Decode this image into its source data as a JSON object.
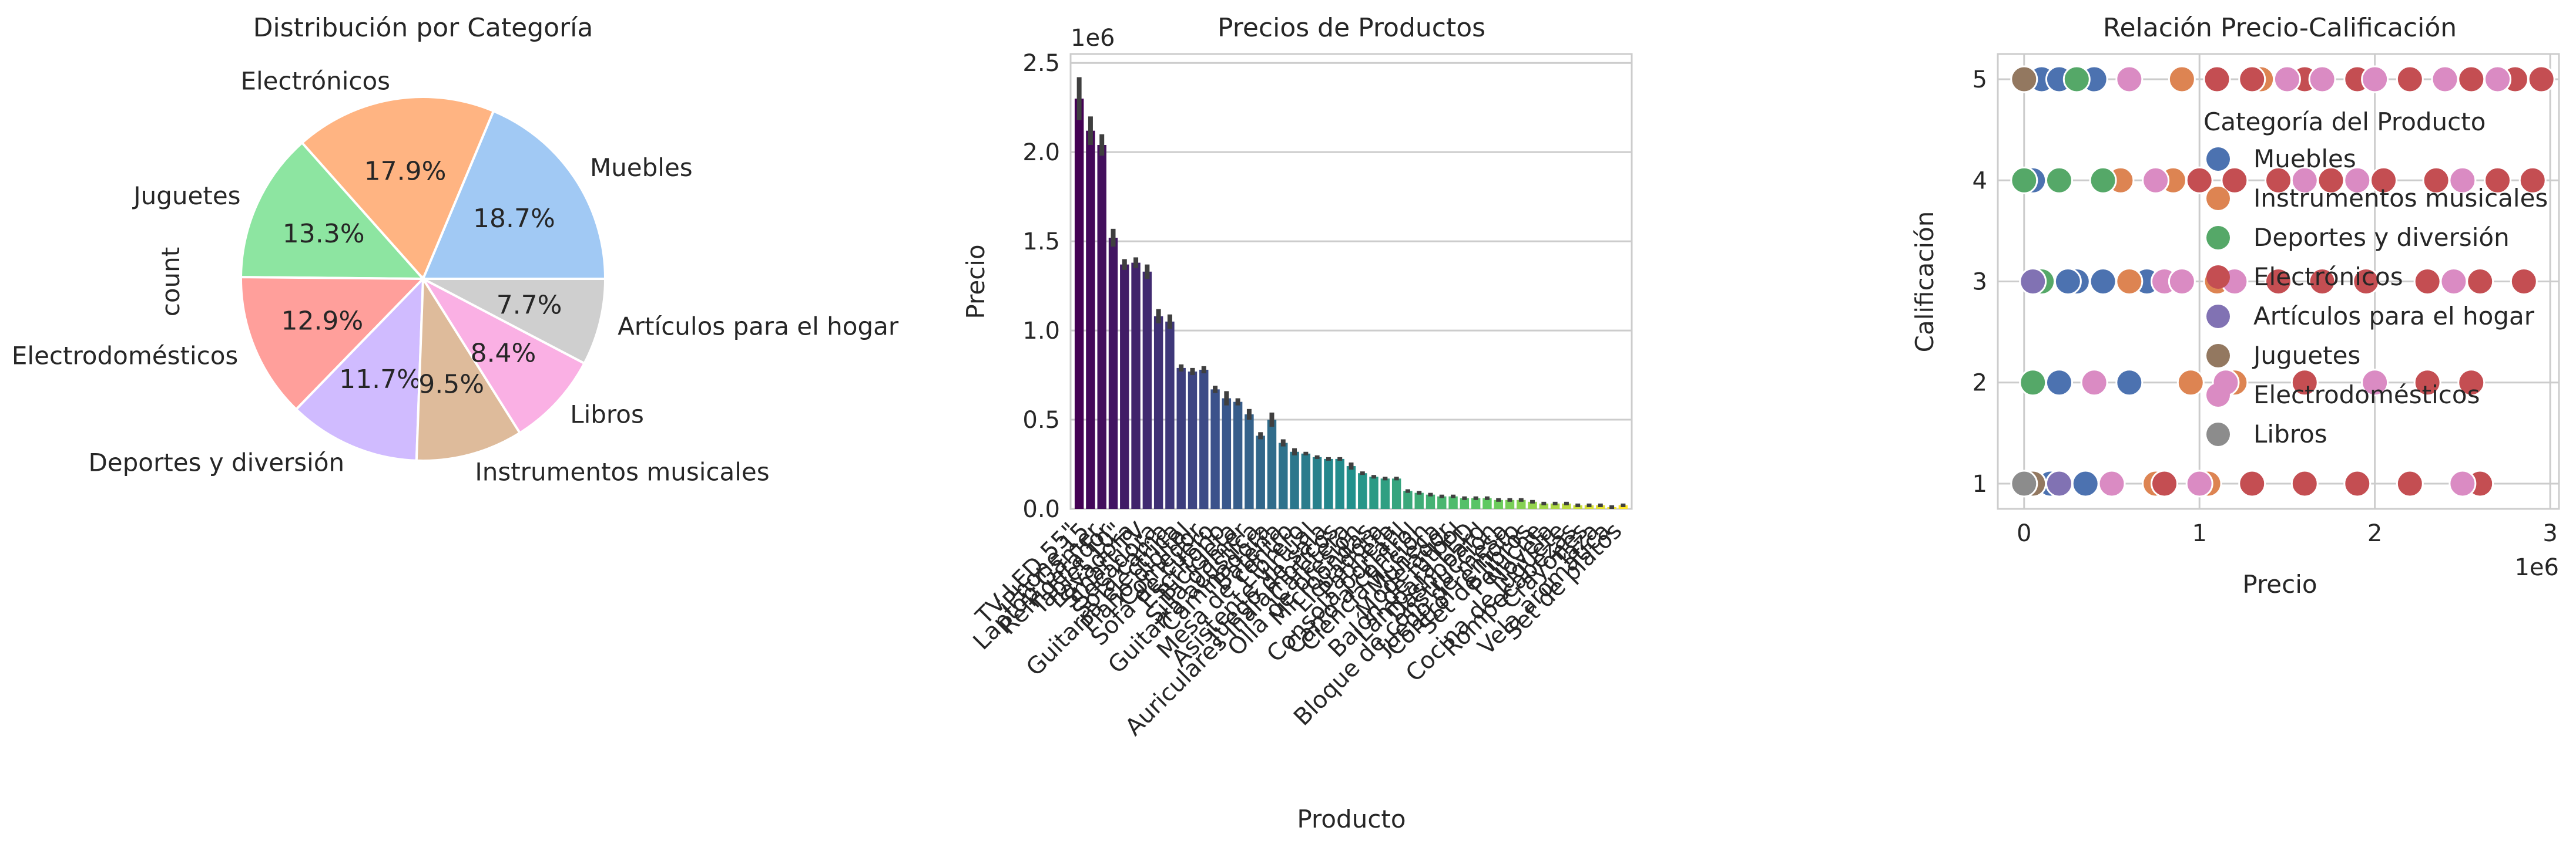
{
  "chart_data": [
    {
      "type": "pie",
      "title": "Distribución por Categoría",
      "ylabel": "count",
      "slices": [
        {
          "label": "Muebles",
          "percent": 18.7,
          "pct_label": "18.7%",
          "color": "#a1c9f4"
        },
        {
          "label": "Electrónicos",
          "percent": 17.9,
          "pct_label": "17.9%",
          "color": "#ffb482"
        },
        {
          "label": "Juguetes",
          "percent": 13.3,
          "pct_label": "13.3%",
          "color": "#8de5a1"
        },
        {
          "label": "Electrodomésticos",
          "percent": 12.9,
          "pct_label": "12.9%",
          "color": "#ff9f9b"
        },
        {
          "label": "Deportes y diversión",
          "percent": 11.7,
          "pct_label": "11.7%",
          "color": "#d0bbff"
        },
        {
          "label": "Instrumentos musicales",
          "percent": 9.5,
          "pct_label": "9.5%",
          "color": "#debb9b"
        },
        {
          "label": "Libros",
          "percent": 8.4,
          "pct_label": "8.4%",
          "color": "#fab0e4"
        },
        {
          "label": "Artículos para el hogar",
          "percent": 7.7,
          "pct_label": "7.7%",
          "color": "#cfcfcf"
        }
      ]
    },
    {
      "type": "bar",
      "title": "Precios de Productos",
      "xlabel": "Producto",
      "ylabel": "Precio",
      "offset_label": "1e6",
      "ylim": [
        0,
        2.55
      ],
      "yticks": [
        "0.0",
        "0.5",
        "1.0",
        "1.5",
        "2.0",
        "2.5"
      ],
      "bars_count_note": null,
      "values": [
        2.3,
        2.12,
        2.04,
        1.52,
        1.37,
        1.38,
        1.33,
        1.08,
        1.05,
        0.79,
        0.77,
        0.78,
        0.67,
        0.62,
        0.6,
        0.53,
        0.41,
        0.5,
        0.37,
        0.32,
        0.31,
        0.29,
        0.28,
        0.28,
        0.24,
        0.2,
        0.18,
        0.17,
        0.17,
        0.1,
        0.09,
        0.08,
        0.07,
        0.07,
        0.06,
        0.06,
        0.06,
        0.05,
        0.05,
        0.05,
        0.04,
        0.03,
        0.03,
        0.03,
        0.02,
        0.02,
        0.02,
        0.01,
        0.02
      ],
      "errors": [
        0.12,
        0.08,
        0.06,
        0.05,
        0.03,
        0.03,
        0.04,
        0.04,
        0.04,
        0.02,
        0.02,
        0.02,
        0.02,
        0.04,
        0.02,
        0.03,
        0.02,
        0.04,
        0.02,
        0.02,
        0.01,
        0.01,
        0.01,
        0.01,
        0.02,
        0.01,
        0.01,
        0.01,
        0.01,
        0.01,
        0.01,
        0.01,
        0.01,
        0.01,
        0.01,
        0.01,
        0.01,
        0.01,
        0.01,
        0.01,
        0.01,
        0.01,
        0.01,
        0.01,
        0.01,
        0.01,
        0.01,
        0.01,
        0.01
      ],
      "categories": [
        "TV LED 55\"",
        "iPhone 15",
        "Laptop Gamer",
        "Refrigerador",
        "Tablet 10\"",
        "Lavadora",
        "Smart TV",
        "Secadora",
        "Sofá cama",
        "Guitarra eléctrica",
        "Piano digital",
        "Comedor",
        "Sofá de cuero",
        "Escritorio",
        "Bicicleta",
        "Silla gamer",
        "Guitarra acústica",
        "Caminadora",
        "Batería",
        "Mesa de centro",
        "Librero",
        "Asistente virtual",
        "Juego de sala",
        "Auriculares inalámbricos",
        "Cafetera",
        "Olla de presión",
        "Microondas",
        "Licuadora",
        "Patineta",
        "Consola portátil",
        "Carro a control",
        "Ciencia ficción",
        "Muñeca",
        "Modelador",
        "Balón de fútbol",
        "Lámpara LED",
        "Dashboard",
        "Bloque de construcción",
        "Juego de mesa",
        "Control remoto",
        "Set de libros",
        "Peluche",
        "Novela",
        "Cocina de juguete",
        "Rompecabezas",
        "Crayones",
        "Taza",
        "Vela aromática",
        "Set de platos"
      ],
      "palette_start": "#440154",
      "palette_mid": "#21918c",
      "palette_end": "#fde725"
    },
    {
      "type": "scatter",
      "title": "Relación Precio-Calificación",
      "xlabel": "Precio",
      "ylabel": "Calificación",
      "offset_label": "1e6",
      "xlim": [
        -0.15,
        3.05
      ],
      "ylim": [
        0.75,
        5.25
      ],
      "xticks": [
        0,
        1,
        2,
        3
      ],
      "yticks": [
        1,
        2,
        3,
        4,
        5
      ],
      "legend_title": "Categoría del Producto",
      "legend_position": "upper right",
      "series": [
        {
          "name": "Muebles",
          "color": "#4c72b0",
          "points": [
            [
              0.1,
              5
            ],
            [
              0.2,
              5
            ],
            [
              0.4,
              5
            ],
            [
              0.05,
              4
            ],
            [
              0.3,
              3
            ],
            [
              0.45,
              3
            ],
            [
              0.6,
              2
            ],
            [
              0.2,
              2
            ],
            [
              0.35,
              1
            ],
            [
              0.15,
              1
            ],
            [
              0.5,
              1
            ],
            [
              0.25,
              3
            ],
            [
              0.7,
              3
            ]
          ]
        },
        {
          "name": "Instrumentos musicales",
          "color": "#dd8452",
          "points": [
            [
              0.9,
              5
            ],
            [
              1.35,
              5
            ],
            [
              0.55,
              4
            ],
            [
              0.85,
              4
            ],
            [
              1.1,
              3
            ],
            [
              0.95,
              2
            ],
            [
              1.2,
              2
            ],
            [
              1.05,
              1
            ],
            [
              0.75,
              1
            ],
            [
              0.6,
              3
            ]
          ]
        },
        {
          "name": "Deportes y diversión",
          "color": "#55a868",
          "points": [
            [
              0.3,
              5
            ],
            [
              0.45,
              4
            ],
            [
              0.0,
              4
            ],
            [
              0.2,
              4
            ],
            [
              0.05,
              2
            ],
            [
              0.1,
              3
            ]
          ]
        },
        {
          "name": "Electrónicos",
          "color": "#c44e52",
          "points": [
            [
              1.1,
              5
            ],
            [
              1.3,
              5
            ],
            [
              1.6,
              5
            ],
            [
              1.9,
              5
            ],
            [
              2.2,
              5
            ],
            [
              2.55,
              5
            ],
            [
              2.8,
              5
            ],
            [
              2.95,
              5
            ],
            [
              1.2,
              4
            ],
            [
              1.45,
              4
            ],
            [
              1.75,
              4
            ],
            [
              2.05,
              4
            ],
            [
              2.35,
              4
            ],
            [
              2.7,
              4
            ],
            [
              2.9,
              4
            ],
            [
              1.45,
              3
            ],
            [
              1.7,
              3
            ],
            [
              1.95,
              3
            ],
            [
              2.3,
              3
            ],
            [
              2.6,
              3
            ],
            [
              2.85,
              3
            ],
            [
              1.6,
              2
            ],
            [
              2.3,
              2
            ],
            [
              2.55,
              2
            ],
            [
              1.3,
              1
            ],
            [
              1.6,
              1
            ],
            [
              1.9,
              1
            ],
            [
              2.2,
              1
            ],
            [
              2.6,
              1
            ],
            [
              1.0,
              4
            ],
            [
              0.8,
              1
            ]
          ]
        },
        {
          "name": "Artículos para el hogar",
          "color": "#8172b3",
          "points": [
            [
              0.05,
              3
            ],
            [
              0.2,
              1
            ]
          ]
        },
        {
          "name": "Juguetes",
          "color": "#937860",
          "points": [
            [
              0.0,
              5
            ],
            [
              0.05,
              1
            ]
          ]
        },
        {
          "name": "Electrodomésticos",
          "color": "#da8bc3",
          "points": [
            [
              0.6,
              5
            ],
            [
              1.5,
              5
            ],
            [
              1.7,
              5
            ],
            [
              2.0,
              5
            ],
            [
              2.4,
              5
            ],
            [
              2.7,
              5
            ],
            [
              0.75,
              4
            ],
            [
              1.6,
              4
            ],
            [
              1.9,
              4
            ],
            [
              2.5,
              4
            ],
            [
              0.8,
              3
            ],
            [
              1.2,
              3
            ],
            [
              2.45,
              3
            ],
            [
              0.4,
              2
            ],
            [
              1.15,
              2
            ],
            [
              2.0,
              2
            ],
            [
              1.0,
              1
            ],
            [
              2.5,
              1
            ],
            [
              0.5,
              1
            ],
            [
              0.9,
              3
            ]
          ]
        },
        {
          "name": "Libros",
          "color": "#8c8c8c",
          "points": [
            [
              0.0,
              1
            ]
          ]
        }
      ]
    }
  ]
}
